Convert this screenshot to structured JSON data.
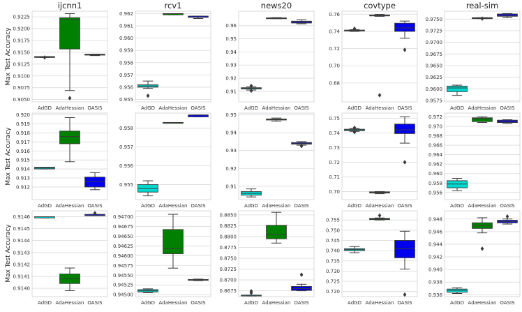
{
  "figure": {
    "y_axis_label": "Max Test Accuracy",
    "colors": {
      "AdGD": "#00d9d0",
      "AdaHessian": "#008000",
      "OASIS": "#0000ee"
    }
  },
  "chart_data": [
    {
      "type": "box",
      "title": "ijcnn1",
      "categories": [
        "AdGD",
        "AdaHessian",
        "OASIS"
      ],
      "ylim": [
        0.9045,
        0.9237
      ],
      "yticks": [
        "0.9050",
        "0.9075",
        "0.9100",
        "0.9125",
        "0.9150",
        "0.9175",
        "0.9200",
        "0.9225"
      ],
      "boxes": [
        {
          "min": 0.9139,
          "q1": 0.9139,
          "median": 0.914,
          "q3": 0.9141,
          "max": 0.9141,
          "outliers": [
            0.9139
          ]
        },
        {
          "min": 0.9069,
          "q1": 0.9157,
          "median": 0.922,
          "q3": 0.9223,
          "max": 0.9232,
          "outliers": [
            0.9053
          ]
        },
        {
          "min": 0.9143,
          "q1": 0.9144,
          "median": 0.9145,
          "q3": 0.9146,
          "max": 0.9146,
          "outliers": []
        }
      ]
    },
    {
      "type": "box",
      "title": "rcv1",
      "categories": [
        "AdGD",
        "AdaHessian",
        "OASIS"
      ],
      "ylim": [
        0.9548,
        0.9622
      ],
      "yticks": [
        "0.955",
        "0.956",
        "0.957",
        "0.958",
        "0.959",
        "0.960",
        "0.961",
        "0.962"
      ],
      "boxes": [
        {
          "min": 0.9559,
          "q1": 0.956,
          "median": 0.9561,
          "q3": 0.9562,
          "max": 0.9565,
          "outliers": [
            0.9553
          ]
        },
        {
          "min": 0.9619,
          "q1": 0.9619,
          "median": 0.962,
          "q3": 0.962,
          "max": 0.962,
          "outliers": []
        },
        {
          "min": 0.9616,
          "q1": 0.9617,
          "median": 0.9617,
          "q3": 0.9618,
          "max": 0.9618,
          "outliers": []
        }
      ]
    },
    {
      "type": "box",
      "title": "news20",
      "categories": [
        "AdGD",
        "AdaHessian",
        "OASIS"
      ],
      "ylim": [
        0.902,
        0.971
      ],
      "yticks": [
        "0.91",
        "0.92",
        "0.93",
        "0.94",
        "0.95",
        "0.96"
      ],
      "boxes": [
        {
          "min": 0.911,
          "q1": 0.9118,
          "median": 0.9124,
          "q3": 0.9128,
          "max": 0.9135,
          "outliers": [
            0.9142,
            0.9105
          ]
        },
        {
          "min": 0.9653,
          "q1": 0.9655,
          "median": 0.9657,
          "q3": 0.9659,
          "max": 0.9661,
          "outliers": []
        },
        {
          "min": 0.9614,
          "q1": 0.962,
          "median": 0.9628,
          "q3": 0.9634,
          "max": 0.9645,
          "outliers": []
        }
      ]
    },
    {
      "type": "box",
      "title": "covtype",
      "categories": [
        "AdGD",
        "AdaHessian",
        "OASIS"
      ],
      "ylim": [
        0.658,
        0.7635
      ],
      "yticks": [
        "0.68",
        "0.70",
        "0.72",
        "0.74",
        "0.76"
      ],
      "boxes": [
        {
          "min": 0.74,
          "q1": 0.7405,
          "median": 0.741,
          "q3": 0.7415,
          "max": 0.742,
          "outliers": [
            0.7432
          ]
        },
        {
          "min": 0.7575,
          "q1": 0.758,
          "median": 0.7585,
          "q3": 0.759,
          "max": 0.7598,
          "outliers": [
            0.6658
          ]
        },
        {
          "min": 0.732,
          "q1": 0.74,
          "median": 0.744,
          "q3": 0.7495,
          "max": 0.752,
          "outliers": [
            0.7185
          ]
        }
      ]
    },
    {
      "type": "box",
      "title": "real-sim",
      "categories": [
        "AdGD",
        "AdaHessian",
        "OASIS"
      ],
      "ylim": [
        0.9572,
        0.9767
      ],
      "yticks": [
        "0.9575",
        "0.9600",
        "0.9625",
        "0.9650",
        "0.9675",
        "0.9700",
        "0.9725",
        "0.9750"
      ],
      "boxes": [
        {
          "min": 0.9586,
          "q1": 0.9594,
          "median": 0.9602,
          "q3": 0.9606,
          "max": 0.9608,
          "outliers": []
        },
        {
          "min": 0.9751,
          "q1": 0.9751,
          "median": 0.9752,
          "q3": 0.9753,
          "max": 0.9753,
          "outliers": [
            0.9751
          ]
        },
        {
          "min": 0.9753,
          "q1": 0.9756,
          "median": 0.9758,
          "q3": 0.9761,
          "max": 0.9762,
          "outliers": []
        }
      ]
    },
    {
      "type": "box",
      "title": "",
      "categories": [
        "AdGD",
        "AdaHessian",
        "OASIS"
      ],
      "ylim": [
        0.9106,
        0.9202
      ],
      "yticks": [
        "0.912",
        "0.913",
        "0.914",
        "0.915",
        "0.916",
        "0.917",
        "0.918",
        "0.919",
        "0.920"
      ],
      "boxes": [
        {
          "min": 0.914,
          "q1": 0.914,
          "median": 0.9141,
          "q3": 0.9142,
          "max": 0.9142,
          "outliers": []
        },
        {
          "min": 0.9148,
          "q1": 0.9168,
          "median": 0.9176,
          "q3": 0.9182,
          "max": 0.9197,
          "outliers": []
        },
        {
          "min": 0.9117,
          "q1": 0.912,
          "median": 0.9126,
          "q3": 0.9131,
          "max": 0.9136,
          "outliers": []
        }
      ]
    },
    {
      "type": "box",
      "title": "",
      "categories": [
        "AdGD",
        "AdaHessian",
        "OASIS"
      ],
      "ylim": [
        0.9542,
        0.9588
      ],
      "yticks": [
        "0.955",
        "0.956",
        "0.957",
        "0.958"
      ],
      "boxes": [
        {
          "min": 0.9544,
          "q1": 0.9546,
          "median": 0.9548,
          "q3": 0.955,
          "max": 0.9552,
          "outliers": []
        },
        {
          "min": 0.9583,
          "q1": 0.9583,
          "median": 0.9583,
          "q3": 0.9583,
          "max": 0.9583,
          "outliers": []
        },
        {
          "min": 0.9586,
          "q1": 0.9586,
          "median": 0.9587,
          "q3": 0.9587,
          "max": 0.9587,
          "outliers": []
        }
      ]
    },
    {
      "type": "box",
      "title": "",
      "categories": [
        "AdGD",
        "AdaHessian",
        "OASIS"
      ],
      "ylim": [
        0.9025,
        0.951
      ],
      "yticks": [
        "0.91",
        "0.92",
        "0.93",
        "0.94",
        "0.95"
      ],
      "boxes": [
        {
          "min": 0.904,
          "q1": 0.905,
          "median": 0.906,
          "q3": 0.907,
          "max": 0.9085,
          "outliers": []
        },
        {
          "min": 0.9465,
          "q1": 0.9471,
          "median": 0.9474,
          "q3": 0.9477,
          "max": 0.9482,
          "outliers": []
        },
        {
          "min": 0.933,
          "q1": 0.9336,
          "median": 0.9341,
          "q3": 0.9345,
          "max": 0.935,
          "outliers": [
            0.9325
          ]
        }
      ]
    },
    {
      "type": "box",
      "title": "",
      "categories": [
        "AdGD",
        "AdaHessian",
        "OASIS"
      ],
      "ylim": [
        0.6945,
        0.7535
      ],
      "yticks": [
        "0.70",
        "0.71",
        "0.72",
        "0.73",
        "0.74",
        "0.75"
      ],
      "boxes": [
        {
          "min": 0.741,
          "q1": 0.7415,
          "median": 0.742,
          "q3": 0.7425,
          "max": 0.743,
          "outliers": [
            0.7405,
            0.7435
          ]
        },
        {
          "min": 0.6985,
          "q1": 0.699,
          "median": 0.6995,
          "q3": 0.6998,
          "max": 0.7,
          "outliers": []
        },
        {
          "min": 0.733,
          "q1": 0.7395,
          "median": 0.742,
          "q3": 0.746,
          "max": 0.751,
          "outliers": [
            0.72
          ]
        }
      ]
    },
    {
      "type": "box",
      "title": "",
      "categories": [
        "AdGD",
        "AdaHessian",
        "OASIS"
      ],
      "ylim": [
        0.9545,
        0.9728
      ],
      "yticks": [
        "0.956",
        "0.958",
        "0.960",
        "0.962",
        "0.964",
        "0.966",
        "0.968",
        "0.970",
        "0.972"
      ],
      "boxes": [
        {
          "min": 0.9564,
          "q1": 0.957,
          "median": 0.9578,
          "q3": 0.9585,
          "max": 0.959,
          "outliers": []
        },
        {
          "min": 0.9708,
          "q1": 0.971,
          "median": 0.9716,
          "q3": 0.9718,
          "max": 0.972,
          "outliers": []
        },
        {
          "min": 0.9706,
          "q1": 0.9708,
          "median": 0.9711,
          "q3": 0.9713,
          "max": 0.9714,
          "outliers": []
        }
      ]
    },
    {
      "type": "box",
      "title": "",
      "categories": [
        "AdGD",
        "AdaHessian",
        "OASIS"
      ],
      "ylim": [
        0.91393,
        0.91465
      ],
      "yticks": [
        "0.9140",
        "0.9141",
        "0.9142",
        "0.9143",
        "0.9144",
        "0.9145",
        "0.9146"
      ],
      "boxes": [
        {
          "min": 0.91459,
          "q1": 0.91459,
          "median": 0.9146,
          "q3": 0.9146,
          "max": 0.9146,
          "outliers": []
        },
        {
          "min": 0.91398,
          "q1": 0.91404,
          "median": 0.91408,
          "q3": 0.91412,
          "max": 0.91417,
          "outliers": []
        },
        {
          "min": 0.91461,
          "q1": 0.91461,
          "median": 0.91461,
          "q3": 0.91462,
          "max": 0.91462,
          "outliers": [
            0.91463
          ]
        }
      ]
    },
    {
      "type": "box",
      "title": "",
      "categories": [
        "AdGD",
        "AdaHessian",
        "OASIS"
      ],
      "ylim": [
        0.94495,
        0.94715
      ],
      "yticks": [
        "0.94500",
        "0.94525",
        "0.94550",
        "0.94575",
        "0.94600",
        "0.94625",
        "0.94650",
        "0.94675",
        "0.94700"
      ],
      "boxes": [
        {
          "min": 0.94505,
          "q1": 0.94507,
          "median": 0.9451,
          "q3": 0.94513,
          "max": 0.94515,
          "outliers": []
        },
        {
          "min": 0.94568,
          "q1": 0.94605,
          "median": 0.94618,
          "q3": 0.94667,
          "max": 0.94706,
          "outliers": []
        },
        {
          "min": 0.94536,
          "q1": 0.94537,
          "median": 0.94538,
          "q3": 0.94539,
          "max": 0.9454,
          "outliers": []
        }
      ]
    },
    {
      "type": "box",
      "title": "",
      "categories": [
        "AdGD",
        "AdaHessian",
        "OASIS"
      ],
      "ylim": [
        0.86615,
        0.88595
      ],
      "yticks": [
        "0.8675",
        "0.8700",
        "0.8725",
        "0.8750",
        "0.8775",
        "0.8800",
        "0.8825",
        "0.8850"
      ],
      "boxes": [
        {
          "min": 0.8663,
          "q1": 0.8664,
          "median": 0.8665,
          "q3": 0.8665,
          "max": 0.8665,
          "outliers": [
            0.867,
            0.8674
          ]
        },
        {
          "min": 0.8785,
          "q1": 0.8795,
          "median": 0.8805,
          "q3": 0.8826,
          "max": 0.8856,
          "outliers": []
        },
        {
          "min": 0.8675,
          "q1": 0.8676,
          "median": 0.868,
          "q3": 0.8685,
          "max": 0.869,
          "outliers": [
            0.8712
          ]
        }
      ]
    },
    {
      "type": "box",
      "title": "",
      "categories": [
        "AdGD",
        "AdaHessian",
        "OASIS"
      ],
      "ylim": [
        0.7175,
        0.7595
      ],
      "yticks": [
        "0.720",
        "0.725",
        "0.730",
        "0.735",
        "0.740",
        "0.745",
        "0.750",
        "0.755"
      ],
      "boxes": [
        {
          "min": 0.739,
          "q1": 0.74,
          "median": 0.7405,
          "q3": 0.741,
          "max": 0.742,
          "outliers": []
        },
        {
          "min": 0.755,
          "q1": 0.7552,
          "median": 0.7555,
          "q3": 0.7558,
          "max": 0.756,
          "outliers": [
            0.7572
          ]
        },
        {
          "min": 0.731,
          "q1": 0.7365,
          "median": 0.741,
          "q3": 0.745,
          "max": 0.7495,
          "outliers": [
            0.7185
          ]
        }
      ]
    },
    {
      "type": "box",
      "title": "",
      "categories": [
        "AdGD",
        "AdaHessian",
        "OASIS"
      ],
      "ylim": [
        0.9357,
        0.9493
      ],
      "yticks": [
        "0.936",
        "0.938",
        "0.940",
        "0.942",
        "0.944",
        "0.946",
        "0.948"
      ],
      "boxes": [
        {
          "min": 0.9362,
          "q1": 0.9364,
          "median": 0.9367,
          "q3": 0.9369,
          "max": 0.9371,
          "outliers": []
        },
        {
          "min": 0.9458,
          "q1": 0.9465,
          "median": 0.947,
          "q3": 0.9474,
          "max": 0.9482,
          "outliers": [
            0.9433
          ]
        },
        {
          "min": 0.9472,
          "q1": 0.9474,
          "median": 0.9476,
          "q3": 0.9478,
          "max": 0.948,
          "outliers": [
            0.9484
          ]
        }
      ]
    }
  ]
}
